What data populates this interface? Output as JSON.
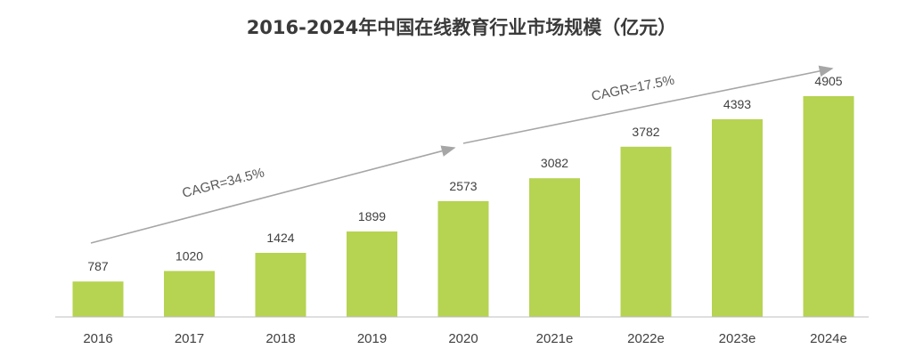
{
  "chart_data": {
    "type": "bar",
    "title": "2016-2024年中国在线教育行业市场规模（亿元）",
    "categories": [
      "2016",
      "2017",
      "2018",
      "2019",
      "2020",
      "2021e",
      "2022e",
      "2023e",
      "2024e"
    ],
    "values": [
      787,
      1020,
      1424,
      1899,
      2573,
      3082,
      3782,
      4393,
      4905
    ],
    "ylim": [
      0,
      5600
    ],
    "grid": false,
    "annotations": [
      {
        "text": "CAGR=34.5%",
        "from": "2016",
        "to": "2020"
      },
      {
        "text": "CAGR=17.5%",
        "from": "2020",
        "to": "2024e"
      }
    ]
  },
  "colors": {
    "bar": "#b6d352",
    "axis": "#bfbfbf",
    "arrow": "#a6a6a6",
    "title": "#3a3a3a",
    "text": "#404040"
  }
}
